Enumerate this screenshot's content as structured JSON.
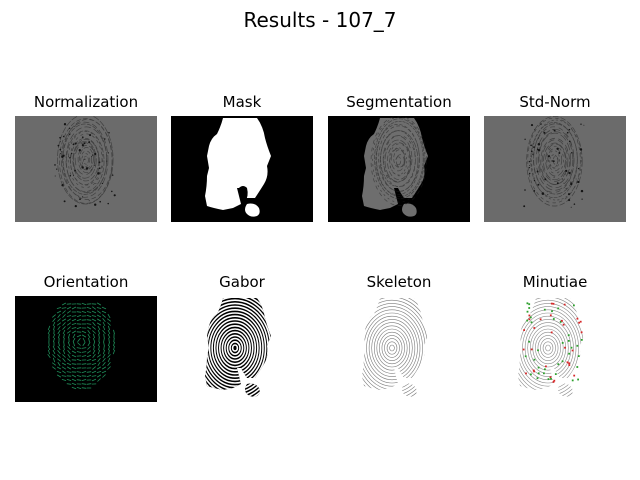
{
  "figure": {
    "title": "Results - 107_7",
    "panels": [
      {
        "title": "Normalization",
        "background": "#6b6b6b",
        "foreground": "#1e1e1e",
        "icon": "fingerprint-gray-image"
      },
      {
        "title": "Mask",
        "background": "#000000",
        "foreground": "#ffffff",
        "icon": "mask-binary-image"
      },
      {
        "title": "Segmentation",
        "background": "#000000",
        "foreground": "#6e6e6e",
        "icon": "segmented-fingerprint-image"
      },
      {
        "title": "Std-Norm",
        "background": "#6b6b6b",
        "foreground": "#1e1e1e",
        "icon": "std-norm-fingerprint-image"
      },
      {
        "title": "Orientation",
        "background": "#000000",
        "foreground": "#1f8f5a",
        "icon": "orientation-field-image"
      },
      {
        "title": "Gabor",
        "background": "#ffffff",
        "foreground": "#000000",
        "icon": "gabor-filtered-image"
      },
      {
        "title": "Skeleton",
        "background": "#ffffff",
        "foreground": "#7a7a7a",
        "icon": "skeleton-image"
      },
      {
        "title": "Minutiae",
        "background": "#ffffff",
        "foreground": "#8a8a8a",
        "icon": "minutiae-image",
        "ending_color": "#d62728",
        "bifurcation_color": "#2ca02c"
      }
    ]
  }
}
